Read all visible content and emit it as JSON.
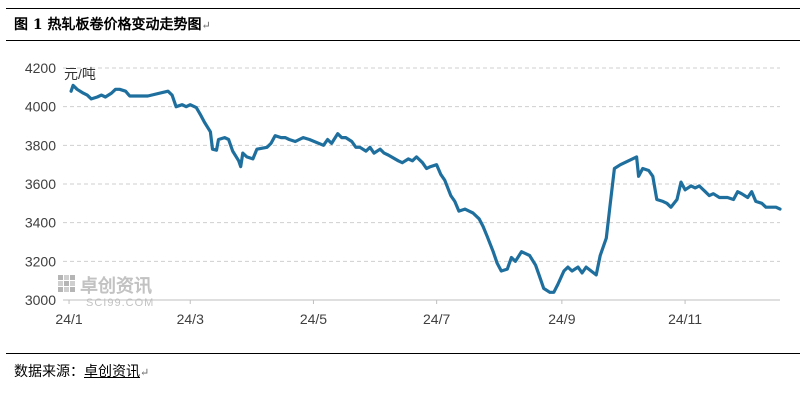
{
  "header": {
    "title": "图 1  热轧板卷价格变动走势图",
    "return_mark": "↵"
  },
  "source": {
    "label": "数据来源：",
    "value": "卓创资讯",
    "return_mark": "↵"
  },
  "watermark": {
    "name": "卓创资讯",
    "url": "SCI99.COM"
  },
  "chart_data": {
    "type": "line",
    "title": "",
    "xlabel": "",
    "ylabel": "元/吨",
    "ylim": [
      3000,
      4200
    ],
    "yticks": [
      3000,
      3200,
      3400,
      3600,
      3800,
      4000,
      4200
    ],
    "x_ticks": [
      "24/1",
      "24/3",
      "24/5",
      "24/7",
      "24/9",
      "24/11"
    ],
    "grid": "horizontal dashed",
    "color": "#1f6f9e",
    "series": [
      {
        "name": "",
        "points": [
          [
            "24/1/02",
            4080
          ],
          [
            "24/1/03",
            4110
          ],
          [
            "24/1/05",
            4090
          ],
          [
            "24/1/08",
            4070
          ],
          [
            "24/1/10",
            4060
          ],
          [
            "24/1/12",
            4040
          ],
          [
            "24/1/15",
            4050
          ],
          [
            "24/1/17",
            4060
          ],
          [
            "24/1/19",
            4050
          ],
          [
            "24/1/22",
            4070
          ],
          [
            "24/1/24",
            4090
          ],
          [
            "24/1/26",
            4090
          ],
          [
            "24/1/29",
            4080
          ],
          [
            "24/1/31",
            4055
          ],
          [
            "24/2/05",
            4055
          ],
          [
            "24/2/09",
            4055
          ],
          [
            "24/2/19",
            4080
          ],
          [
            "24/2/21",
            4060
          ],
          [
            "24/2/23",
            4000
          ],
          [
            "24/2/26",
            4010
          ],
          [
            "24/2/28",
            4000
          ],
          [
            "24/3/01",
            4010
          ],
          [
            "24/3/04",
            3995
          ],
          [
            "24/3/06",
            3960
          ],
          [
            "24/3/08",
            3920
          ],
          [
            "24/3/11",
            3870
          ],
          [
            "24/3/12",
            3780
          ],
          [
            "24/3/14",
            3775
          ],
          [
            "24/3/15",
            3830
          ],
          [
            "24/3/18",
            3840
          ],
          [
            "24/3/20",
            3830
          ],
          [
            "24/3/22",
            3770
          ],
          [
            "24/3/25",
            3720
          ],
          [
            "24/3/26",
            3690
          ],
          [
            "24/3/27",
            3760
          ],
          [
            "24/3/29",
            3740
          ],
          [
            "24/4/01",
            3730
          ],
          [
            "24/4/03",
            3780
          ],
          [
            "24/4/08",
            3790
          ],
          [
            "24/4/10",
            3810
          ],
          [
            "24/4/12",
            3850
          ],
          [
            "24/4/15",
            3840
          ],
          [
            "24/4/17",
            3840
          ],
          [
            "24/4/19",
            3830
          ],
          [
            "24/4/22",
            3820
          ],
          [
            "24/4/24",
            3830
          ],
          [
            "24/4/26",
            3840
          ],
          [
            "24/4/29",
            3830
          ],
          [
            "24/5/06",
            3800
          ],
          [
            "24/5/08",
            3830
          ],
          [
            "24/5/10",
            3810
          ],
          [
            "24/5/13",
            3860
          ],
          [
            "24/5/15",
            3840
          ],
          [
            "24/5/17",
            3840
          ],
          [
            "24/5/20",
            3820
          ],
          [
            "24/5/22",
            3790
          ],
          [
            "24/5/24",
            3790
          ],
          [
            "24/5/27",
            3770
          ],
          [
            "24/5/29",
            3790
          ],
          [
            "24/5/31",
            3760
          ],
          [
            "24/6/03",
            3780
          ],
          [
            "24/6/05",
            3760
          ],
          [
            "24/6/07",
            3750
          ],
          [
            "24/6/12",
            3720
          ],
          [
            "24/6/14",
            3710
          ],
          [
            "24/6/17",
            3730
          ],
          [
            "24/6/19",
            3720
          ],
          [
            "24/6/21",
            3740
          ],
          [
            "24/6/24",
            3710
          ],
          [
            "24/6/26",
            3680
          ],
          [
            "24/6/28",
            3690
          ],
          [
            "24/7/01",
            3700
          ],
          [
            "24/7/03",
            3650
          ],
          [
            "24/7/05",
            3620
          ],
          [
            "24/7/08",
            3540
          ],
          [
            "24/7/10",
            3510
          ],
          [
            "24/7/12",
            3460
          ],
          [
            "24/7/15",
            3470
          ],
          [
            "24/7/17",
            3460
          ],
          [
            "24/7/19",
            3450
          ],
          [
            "24/7/22",
            3420
          ],
          [
            "24/7/24",
            3380
          ],
          [
            "24/7/26",
            3330
          ],
          [
            "24/7/29",
            3250
          ],
          [
            "24/7/31",
            3190
          ],
          [
            "24/8/02",
            3150
          ],
          [
            "24/8/05",
            3160
          ],
          [
            "24/8/07",
            3220
          ],
          [
            "24/8/09",
            3200
          ],
          [
            "24/8/12",
            3250
          ],
          [
            "24/8/14",
            3240
          ],
          [
            "24/8/16",
            3230
          ],
          [
            "24/8/19",
            3180
          ],
          [
            "24/8/21",
            3120
          ],
          [
            "24/8/23",
            3060
          ],
          [
            "24/8/26",
            3040
          ],
          [
            "24/8/28",
            3040
          ],
          [
            "24/8/30",
            3080
          ],
          [
            "24/9/02",
            3150
          ],
          [
            "24/9/04",
            3170
          ],
          [
            "24/9/06",
            3150
          ],
          [
            "24/9/09",
            3170
          ],
          [
            "24/9/11",
            3140
          ],
          [
            "24/9/13",
            3170
          ],
          [
            "24/9/18",
            3130
          ],
          [
            "24/9/20",
            3230
          ],
          [
            "24/9/23",
            3320
          ],
          [
            "24/9/25",
            3500
          ],
          [
            "24/9/27",
            3680
          ],
          [
            "24/9/30",
            3700
          ],
          [
            "24/10/08",
            3740
          ],
          [
            "24/10/09",
            3640
          ],
          [
            "24/10/11",
            3680
          ],
          [
            "24/10/14",
            3670
          ],
          [
            "24/10/16",
            3640
          ],
          [
            "24/10/18",
            3520
          ],
          [
            "24/10/21",
            3510
          ],
          [
            "24/10/23",
            3500
          ],
          [
            "24/10/25",
            3480
          ],
          [
            "24/10/28",
            3520
          ],
          [
            "24/10/30",
            3610
          ],
          [
            "24/11/01",
            3570
          ],
          [
            "24/11/04",
            3590
          ],
          [
            "24/11/06",
            3580
          ],
          [
            "24/11/08",
            3590
          ],
          [
            "24/11/11",
            3560
          ],
          [
            "24/11/13",
            3540
          ],
          [
            "24/11/15",
            3550
          ],
          [
            "24/11/18",
            3530
          ],
          [
            "24/11/20",
            3530
          ],
          [
            "24/11/22",
            3530
          ],
          [
            "24/11/25",
            3520
          ],
          [
            "24/11/27",
            3560
          ],
          [
            "24/11/29",
            3550
          ],
          [
            "24/12/02",
            3530
          ],
          [
            "24/12/04",
            3560
          ],
          [
            "24/12/06",
            3510
          ],
          [
            "24/12/09",
            3500
          ],
          [
            "24/12/11",
            3480
          ],
          [
            "24/12/13",
            3480
          ],
          [
            "24/12/16",
            3480
          ],
          [
            "24/12/18",
            3470
          ]
        ]
      }
    ]
  }
}
